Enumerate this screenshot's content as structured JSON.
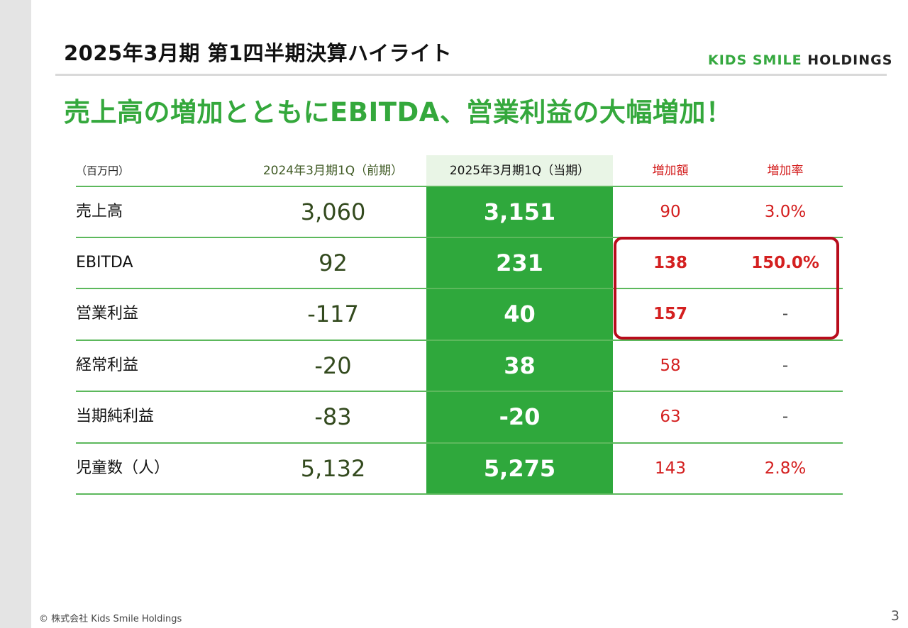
{
  "header": {
    "title": "2025年3月期 第1四半期決算ハイライト"
  },
  "logo": {
    "part1": "KIDS SMILE ",
    "part2": "HOLDINGS"
  },
  "headline": "売上高の増加とともにEBITDA、営業利益の大幅増加！",
  "table": {
    "unit": "（百万円）",
    "col_prev": "2024年3月期1Q（前期）",
    "col_curr": "2025年3月期1Q（当期）",
    "col_inc": "増加額",
    "col_rate": "増加率",
    "rows": [
      {
        "label": "売上高",
        "prev": "3,060",
        "curr": "3,151",
        "inc": "90",
        "rate": "3.0%"
      },
      {
        "label": "EBITDA",
        "prev": "92",
        "curr": "231",
        "inc": "138",
        "rate": "150.0%"
      },
      {
        "label": "営業利益",
        "prev": "-117",
        "curr": "40",
        "inc": "157",
        "rate": "-"
      },
      {
        "label": "経常利益",
        "prev": "-20",
        "curr": "38",
        "inc": "58",
        "rate": "-"
      },
      {
        "label": "当期純利益",
        "prev": "-83",
        "curr": "-20",
        "inc": "63",
        "rate": "-"
      },
      {
        "label": "児童数（人）",
        "prev": "5,132",
        "curr": "5,275",
        "inc": "143",
        "rate": "2.8%"
      }
    ]
  },
  "footer": {
    "copyright": "© 株式会社 Kids Smile Holdings",
    "page": "3"
  },
  "colors": {
    "brand_green": "#34a83c",
    "highlight_red": "#b80c1c",
    "value_red": "#d42020"
  }
}
